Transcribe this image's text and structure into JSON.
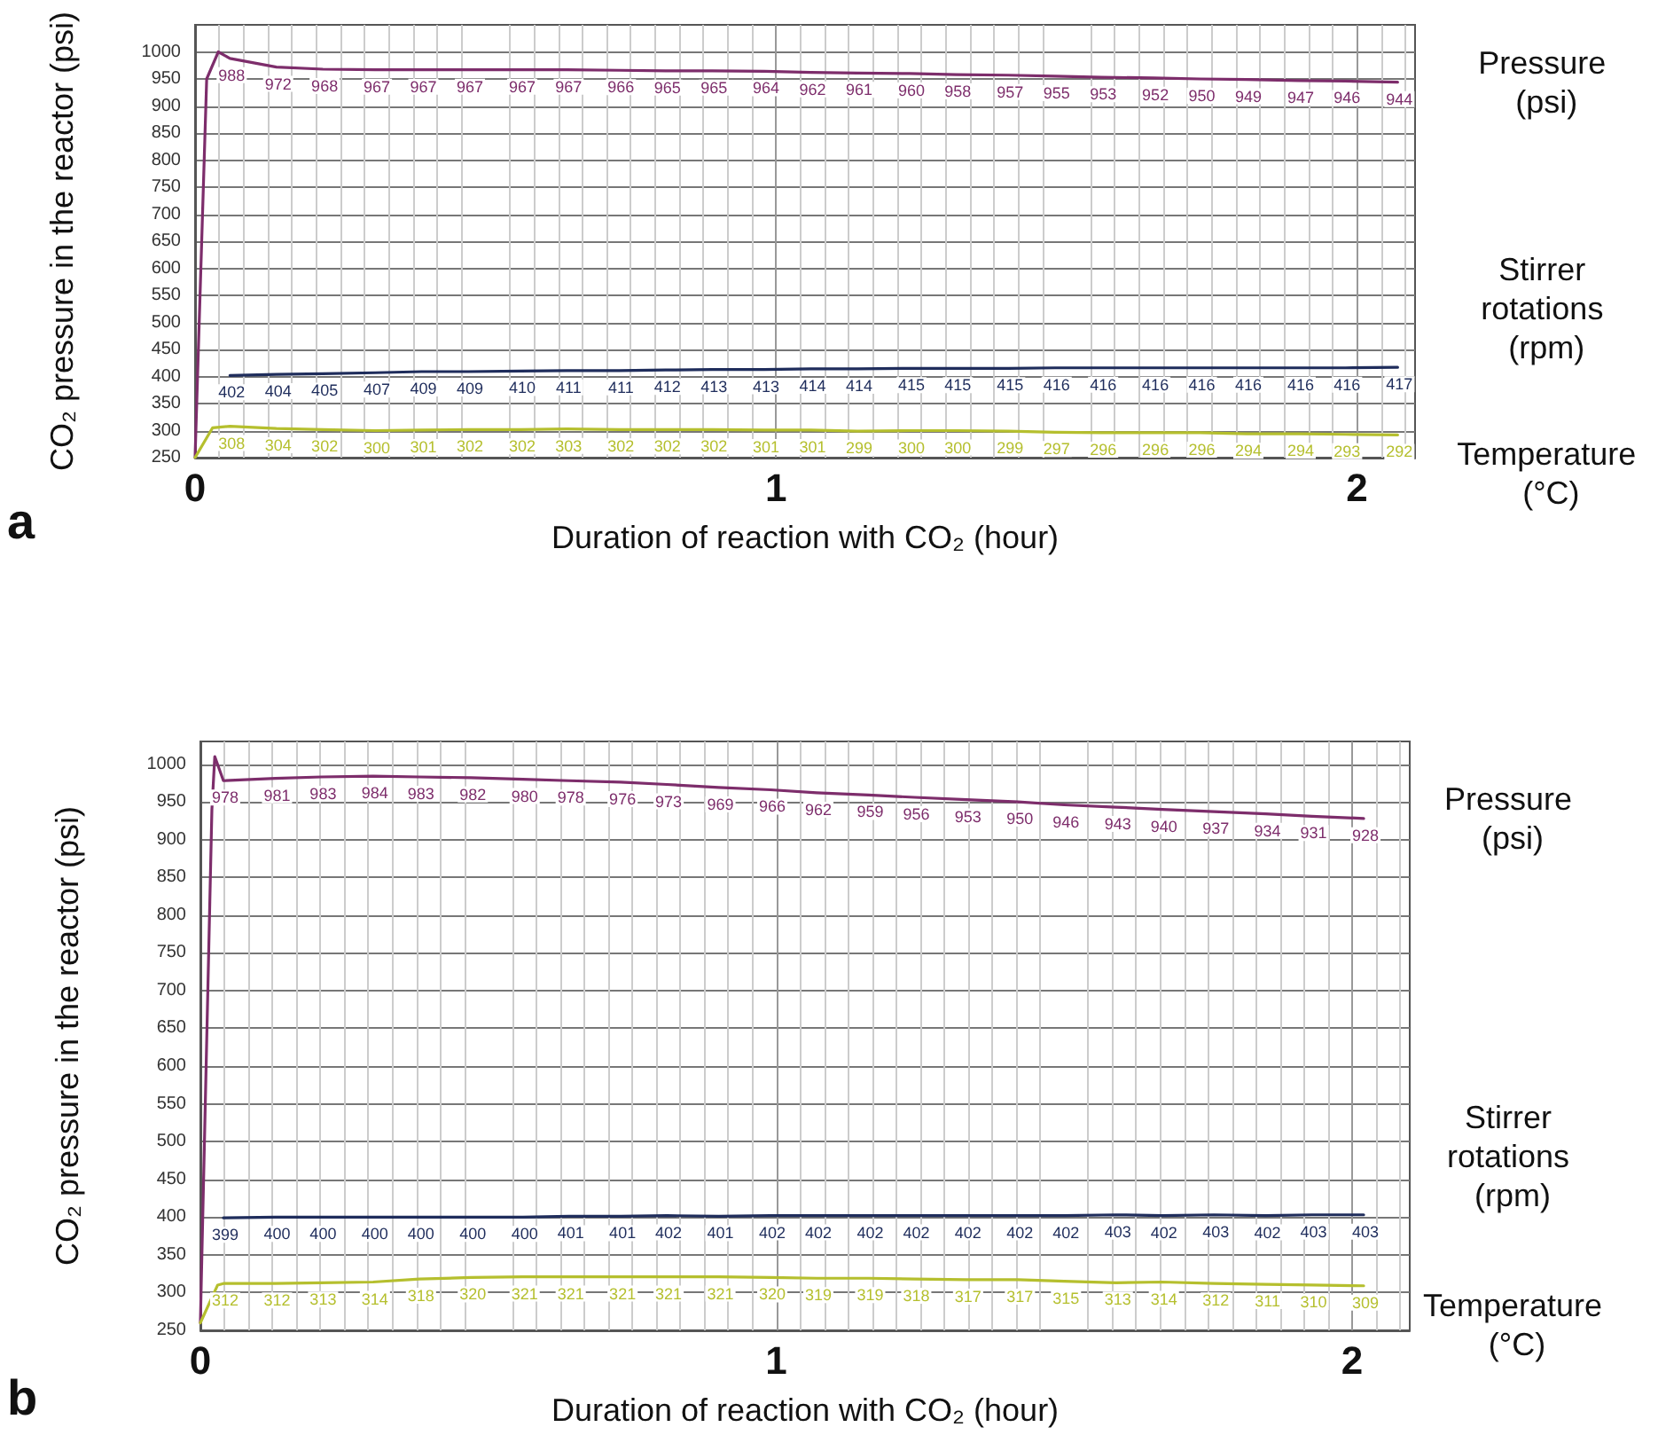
{
  "chart_data": [
    {
      "type": "line",
      "annotations": [
        "a"
      ],
      "xlabel": "Duration of reaction with CO₂ (hour)",
      "ylabel": "CO₂ pressure in the reactor (psi)",
      "xlim": [
        0,
        2.1
      ],
      "xticks": [
        0,
        1,
        2
      ],
      "ylim": [
        250,
        1050
      ],
      "yticks": [
        250,
        300,
        350,
        400,
        450,
        500,
        550,
        600,
        650,
        700,
        750,
        800,
        850,
        900,
        950,
        1000
      ],
      "grid": true,
      "legend": false,
      "marker": "none",
      "series": [
        {
          "name": "Pressure (psi)",
          "color": "#7d2d6b",
          "x": [
            0,
            0.02,
            0.04,
            0.06,
            0.14,
            0.22,
            0.31,
            0.39,
            0.47,
            0.56,
            0.64,
            0.73,
            0.81,
            0.89,
            0.98,
            1.06,
            1.14,
            1.23,
            1.31,
            1.4,
            1.48,
            1.56,
            1.65,
            1.73,
            1.81,
            1.9,
            1.98,
            2.07
          ],
          "values": [
            250,
            950,
            1000,
            988,
            972,
            968,
            967,
            967,
            967,
            967,
            967,
            966,
            965,
            965,
            964,
            962,
            961,
            960,
            958,
            957,
            955,
            953,
            952,
            950,
            949,
            947,
            946,
            944
          ],
          "value_labels": [
            null,
            null,
            null,
            "988",
            "972",
            "968",
            "967",
            "967",
            "967",
            "967",
            "967",
            "966",
            "965",
            "965",
            "964",
            "962",
            "961",
            "960",
            "958",
            "957",
            "955",
            "953",
            "952",
            "950",
            "949",
            "947",
            "946",
            "944"
          ]
        },
        {
          "name": "Stirrer rotations (rpm)",
          "color": "#1f2d5c",
          "x": [
            0.06,
            0.14,
            0.22,
            0.31,
            0.39,
            0.47,
            0.56,
            0.64,
            0.73,
            0.81,
            0.89,
            0.98,
            1.06,
            1.14,
            1.23,
            1.31,
            1.4,
            1.48,
            1.56,
            1.65,
            1.73,
            1.81,
            1.9,
            1.98,
            2.07
          ],
          "values": [
            402,
            404,
            405,
            407,
            409,
            409,
            410,
            411,
            411,
            412,
            413,
            413,
            414,
            414,
            415,
            415,
            415,
            416,
            416,
            416,
            416,
            416,
            416,
            416,
            417
          ],
          "value_labels": [
            "402",
            "404",
            "405",
            "407",
            "409",
            "409",
            "410",
            "411",
            "411",
            "412",
            "413",
            "413",
            "414",
            "414",
            "415",
            "415",
            "415",
            "416",
            "416",
            "416",
            "416",
            "416",
            "416",
            "416",
            "417"
          ]
        },
        {
          "name": "Temperature (°C)",
          "color": "#b5bf2e",
          "x": [
            0,
            0.03,
            0.06,
            0.14,
            0.22,
            0.31,
            0.39,
            0.47,
            0.56,
            0.64,
            0.73,
            0.81,
            0.89,
            0.98,
            1.06,
            1.14,
            1.23,
            1.31,
            1.4,
            1.48,
            1.56,
            1.65,
            1.73,
            1.81,
            1.9,
            1.98,
            2.07
          ],
          "values": [
            250,
            305,
            308,
            304,
            302,
            300,
            301,
            302,
            302,
            303,
            302,
            302,
            302,
            301,
            301,
            299,
            300,
            300,
            299,
            297,
            296,
            296,
            296,
            294,
            294,
            293,
            292
          ],
          "value_labels": [
            null,
            null,
            "308",
            "304",
            "302",
            "300",
            "301",
            "302",
            "302",
            "303",
            "302",
            "302",
            "302",
            "301",
            "301",
            "299",
            "300",
            "300",
            "299",
            "297",
            "296",
            "296",
            "296",
            "294",
            "294",
            "293",
            "292"
          ]
        }
      ]
    },
    {
      "type": "line",
      "annotations": [
        "b"
      ],
      "xlabel": "Duration of reaction with CO₂ (hour)",
      "ylabel": "CO₂ pressure in the reactor (psi)",
      "xlim": [
        0,
        2.1
      ],
      "xticks": [
        0,
        1,
        2
      ],
      "ylim": [
        250,
        1030
      ],
      "yticks": [
        250,
        300,
        350,
        400,
        450,
        500,
        550,
        600,
        650,
        700,
        750,
        800,
        850,
        900,
        950,
        1000
      ],
      "grid": true,
      "legend": false,
      "marker": "none",
      "series": [
        {
          "name": "Pressure (psi)",
          "color": "#7d2d6b",
          "x": [
            0,
            0.02,
            0.025,
            0.04,
            0.13,
            0.21,
            0.3,
            0.38,
            0.47,
            0.56,
            0.64,
            0.73,
            0.81,
            0.9,
            0.99,
            1.07,
            1.16,
            1.24,
            1.33,
            1.42,
            1.5,
            1.59,
            1.67,
            1.76,
            1.85,
            1.93,
            2.02
          ],
          "values": [
            260,
            940,
            1010,
            978,
            981,
            983,
            984,
            983,
            982,
            980,
            978,
            976,
            973,
            969,
            966,
            962,
            959,
            956,
            953,
            950,
            946,
            943,
            940,
            937,
            934,
            931,
            928
          ],
          "value_labels": [
            null,
            null,
            null,
            "978",
            "981",
            "983",
            "984",
            "983",
            "982",
            "980",
            "978",
            "976",
            "973",
            "969",
            "966",
            "962",
            "959",
            "956",
            "953",
            "950",
            "946",
            "943",
            "940",
            "937",
            "934",
            "931",
            "928"
          ]
        },
        {
          "name": "Stirrer rotations (rpm)",
          "color": "#1f2d5c",
          "x": [
            0.04,
            0.13,
            0.21,
            0.3,
            0.38,
            0.47,
            0.56,
            0.64,
            0.73,
            0.81,
            0.9,
            0.99,
            1.07,
            1.16,
            1.24,
            1.33,
            1.42,
            1.5,
            1.59,
            1.67,
            1.76,
            1.85,
            1.93,
            2.02
          ],
          "values": [
            399,
            400,
            400,
            400,
            400,
            400,
            400,
            401,
            401,
            402,
            401,
            402,
            402,
            402,
            402,
            402,
            402,
            402,
            403,
            402,
            403,
            402,
            403,
            403
          ],
          "value_labels": [
            "399",
            "400",
            "400",
            "400",
            "400",
            "400",
            "400",
            "401",
            "401",
            "402",
            "401",
            "402",
            "402",
            "402",
            "402",
            "402",
            "402",
            "402",
            "403",
            "402",
            "403",
            "402",
            "403",
            "403"
          ]
        },
        {
          "name": "Temperature (°C)",
          "color": "#b5bf2e",
          "x": [
            0,
            0.03,
            0.04,
            0.13,
            0.21,
            0.3,
            0.38,
            0.47,
            0.56,
            0.64,
            0.73,
            0.81,
            0.9,
            0.99,
            1.07,
            1.16,
            1.24,
            1.33,
            1.42,
            1.5,
            1.59,
            1.67,
            1.76,
            1.85,
            1.93,
            2.02
          ],
          "values": [
            260,
            310,
            312,
            312,
            313,
            314,
            318,
            320,
            321,
            321,
            321,
            321,
            321,
            320,
            319,
            319,
            318,
            317,
            317,
            315,
            313,
            314,
            312,
            311,
            310,
            309
          ],
          "value_labels": [
            null,
            null,
            "312",
            "312",
            "313",
            "314",
            "318",
            "320",
            "321",
            "321",
            "321",
            "321",
            "321",
            "320",
            "319",
            "319",
            "318",
            "317",
            "317",
            "315",
            "313",
            "314",
            "312",
            "311",
            "310",
            "309"
          ]
        }
      ]
    }
  ]
}
